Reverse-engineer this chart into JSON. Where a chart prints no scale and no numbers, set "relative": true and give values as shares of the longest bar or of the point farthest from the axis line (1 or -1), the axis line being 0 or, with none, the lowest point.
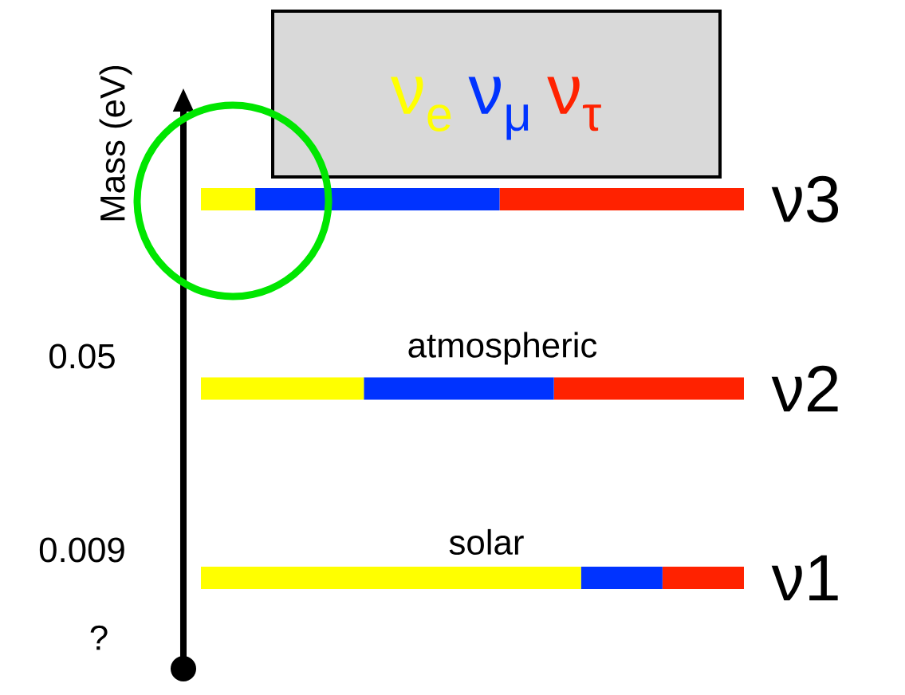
{
  "chart_data": {
    "type": "bar",
    "orientation": "horizontal",
    "stacked": true,
    "relative": true,
    "legend": "top",
    "ylabel": "Mass (eV)",
    "categories": [
      "ν3",
      "ν2",
      "ν1"
    ],
    "series": [
      {
        "name": "ν$_{e}$",
        "color": "#ffff00",
        "values": [
          0.1,
          0.3,
          0.7
        ]
      },
      {
        "name": "ν$_{μ}$",
        "color": "#0033ff",
        "values": [
          0.45,
          0.35,
          0.15
        ]
      },
      {
        "name": "ν$_{τ}$",
        "color": "#ff2200",
        "values": [
          0.45,
          0.35,
          0.15
        ]
      }
    ],
    "annotations": [
      "atmospheric",
      "solar",
      "0.05",
      "0.009",
      "?"
    ]
  }
}
